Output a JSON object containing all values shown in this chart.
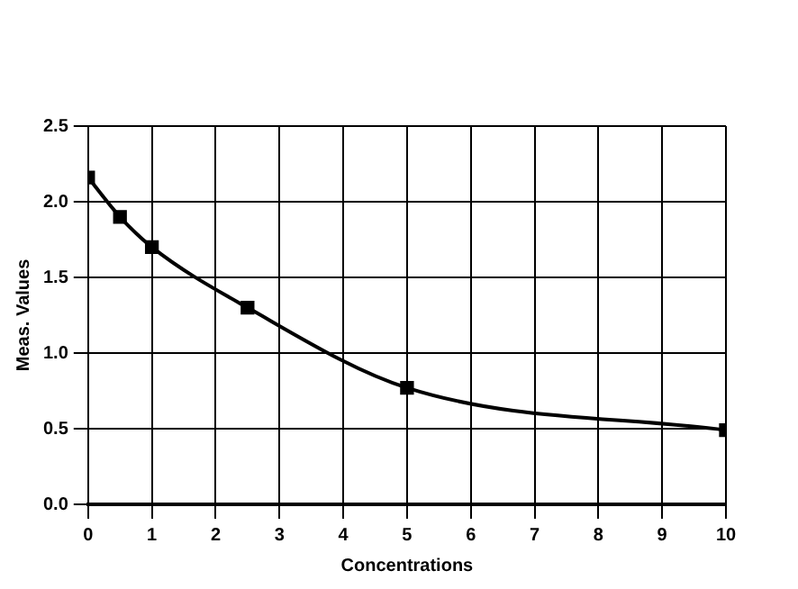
{
  "chart_data": {
    "type": "line",
    "xlabel": "Concentrations",
    "ylabel": "Meas. Values",
    "x": [
      0,
      0.5,
      1,
      2.5,
      5,
      10
    ],
    "series": [
      {
        "color": "#000000",
        "values": [
          2.16,
          1.9,
          1.7,
          1.3,
          0.77,
          0.49
        ]
      }
    ],
    "xlim": [
      0,
      10
    ],
    "xticks": [
      0,
      1,
      2,
      3,
      4,
      5,
      6,
      7,
      8,
      9,
      10
    ],
    "ylim": [
      0,
      2.5
    ],
    "yticks": [
      {
        "value": 0,
        "label": "0.0"
      },
      0.5,
      {
        "value": 1,
        "label": "1.0"
      },
      1.5,
      {
        "value": 2,
        "label": "2.0"
      },
      2.5
    ],
    "grid": true,
    "legend": false,
    "marker": "square",
    "line_style": "solid"
  }
}
